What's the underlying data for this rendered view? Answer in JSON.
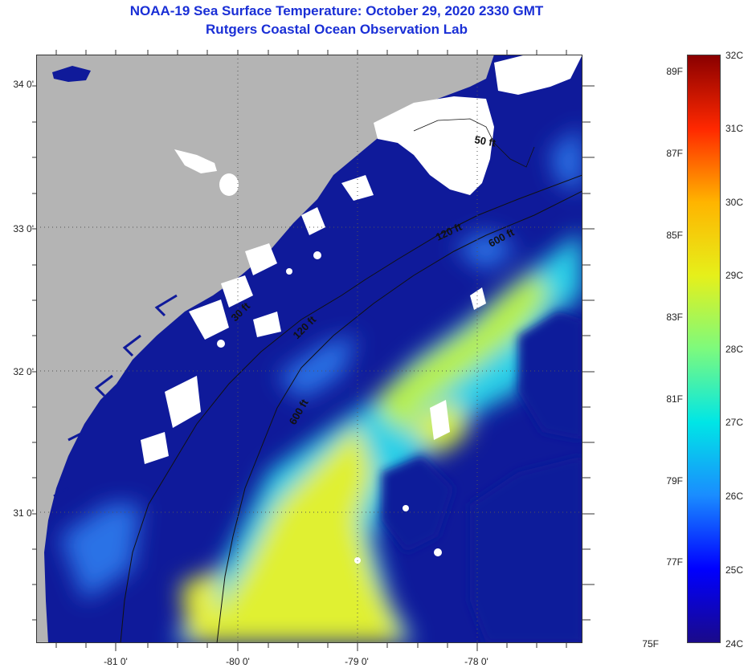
{
  "title_line1": "NOAA-19 Sea Surface Temperature:  October 29, 2020 2330 GMT",
  "title_line2": "Rutgers Coastal Ocean Observation Lab",
  "lat_labels": [
    "34 0'",
    "33 0'",
    "32 0'",
    "31 0'"
  ],
  "lon_labels": [
    "-81 0'",
    "-80 0'",
    "-79 0'",
    "-78 0'"
  ],
  "contours": [
    "50 ft",
    "120 ft",
    "600 ft",
    "120 ft",
    "600 ft",
    "30 ft"
  ],
  "colorbar": {
    "fahrenheit": [
      "89F",
      "87F",
      "85F",
      "83F",
      "81F",
      "79F",
      "77F",
      "75F"
    ],
    "celsius": [
      "32C",
      "31C",
      "30C",
      "29C",
      "28C",
      "27C",
      "26C",
      "25C",
      "24C"
    ],
    "gradient": [
      "#1a0a8a",
      "#0000ff",
      "#1a8cff",
      "#00e6e6",
      "#7dfa7d",
      "#e6f01a",
      "#ffb400",
      "#ff2800",
      "#8a0000"
    ]
  },
  "colors": {
    "land": "#b4b4b4",
    "ocean_cold": "#0f1a9a",
    "ocean_mid": "#2a72e6",
    "ocean_cyan": "#2ad0e8",
    "ocean_warm": "#b8f04a",
    "ocean_yellow": "#e8f030",
    "cloud": "#ffffff"
  }
}
